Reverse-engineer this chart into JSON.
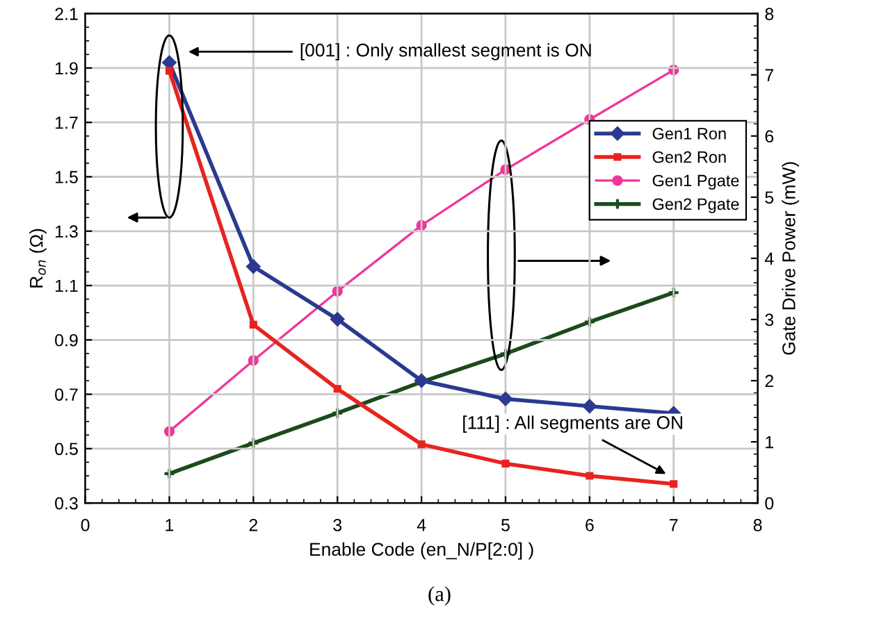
{
  "chart_data": {
    "type": "line",
    "xlabel": "Enable Code (en_N/P[2:0] )",
    "ylabel": "R$_{on}$ (Ω)",
    "y2label": "Gate Drive Power (mW)",
    "x": [
      1,
      2,
      3,
      4,
      5,
      6,
      7
    ],
    "series": [
      {
        "name": "Gen1 Ron",
        "color": "#2b3a8f",
        "marker": "diamond",
        "values": [
          1.92,
          1.17,
          0.976,
          0.75,
          0.683,
          0.656,
          0.63
        ]
      },
      {
        "name": "Gen2 Ron",
        "color": "#e8231f",
        "marker": "square",
        "values": [
          1.89,
          0.956,
          0.72,
          0.516,
          0.445,
          0.4,
          0.37
        ]
      },
      {
        "name": "Gen1 Pgate",
        "color": "#f0369a",
        "marker": "circle",
        "axis": "y2",
        "values": [
          1.17,
          2.33,
          3.46,
          4.54,
          5.45,
          6.27,
          7.08
        ]
      },
      {
        "name": "Gen2 Pgate",
        "color": "#1c4a1c",
        "marker": "cross",
        "axis": "y2",
        "values": [
          0.48,
          0.98,
          1.47,
          1.98,
          2.44,
          2.96,
          3.44
        ]
      }
    ],
    "xlim": [
      0,
      8
    ],
    "xticks": [
      0,
      1,
      2,
      3,
      4,
      5,
      6,
      7,
      8
    ],
    "ylim": [
      0.3,
      2.1
    ],
    "yticks": [
      0.3,
      0.5,
      0.7,
      0.9,
      1.1,
      1.3,
      1.5,
      1.7,
      1.9,
      2.1
    ],
    "y2lim": [
      0,
      8
    ],
    "y2ticks": [
      0,
      1,
      2,
      3,
      4,
      5,
      6,
      7,
      8
    ],
    "grid": true,
    "legend": "right",
    "annotations": [
      "[001] : Only smallest segment is ON",
      {
        "text": "[111] : All segments are ON",
        "x": 7,
        "y": 0.37
      },
      "(a)"
    ]
  }
}
